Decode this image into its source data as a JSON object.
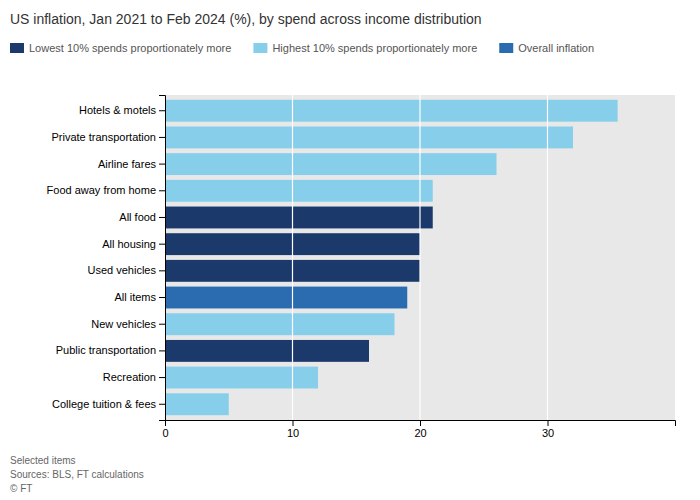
{
  "chart_data": {
    "type": "bar",
    "orientation": "horizontal",
    "stacked": true,
    "title": "US inflation, Jan 2021 to Feb 2024 (%), by spend across income distribution",
    "categories": [
      "Hotels & motels",
      "Private transportation",
      "Airline fares",
      "Food away from home",
      "All food",
      "All housing",
      "Used vehicles",
      "All items",
      "New vehicles",
      "Public transportation",
      "Recreation",
      "College tuition & fees"
    ],
    "series": [
      {
        "name": "Lowest 10% spends proportionately more",
        "color": "#1B3A6B",
        "values": [
          null,
          null,
          null,
          null,
          21.0,
          20.0,
          20.0,
          null,
          null,
          16.0,
          null,
          null
        ]
      },
      {
        "name": "Highest 10% spends proportionately more",
        "color": "#87CEEB",
        "values": [
          35.5,
          32.0,
          26.0,
          21.0,
          null,
          null,
          null,
          null,
          18.0,
          null,
          12.0,
          5.0
        ]
      },
      {
        "name": "Overall inflation",
        "color": "#2B6CB0",
        "values": [
          null,
          null,
          null,
          null,
          null,
          null,
          null,
          19.0,
          null,
          null,
          null,
          null
        ]
      }
    ],
    "xlim": [
      0,
      40
    ],
    "xticks": [
      0,
      10,
      20,
      30
    ],
    "grid": true,
    "legend": "top",
    "annotations": [
      "Selected items",
      "Sources: BLS, FT calculations",
      "© FT"
    ]
  }
}
